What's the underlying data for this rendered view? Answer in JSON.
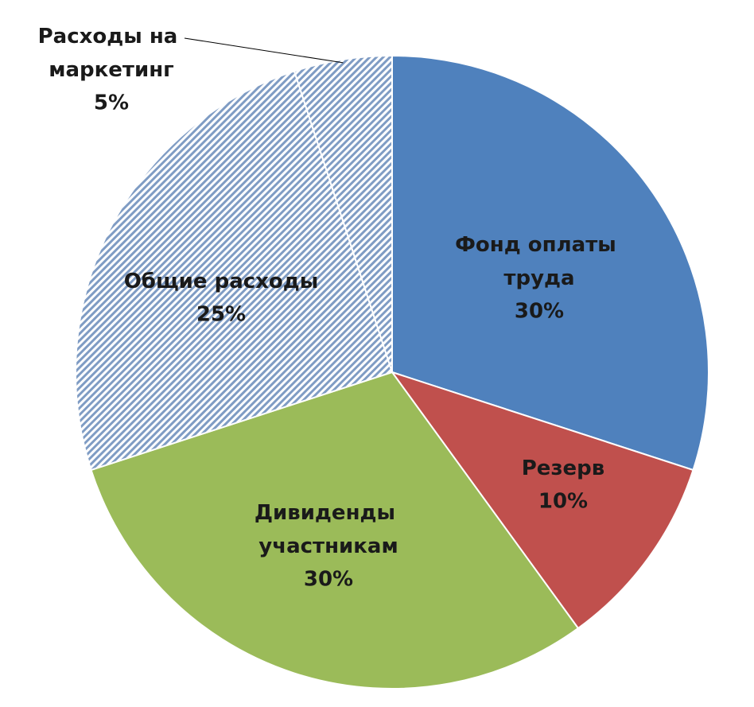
{
  "chart_data": {
    "type": "pie",
    "categories": [
      "Фонд оплаты труда",
      "Резерв",
      "Дивиденды участникам",
      "Общие расходы",
      "Расходы на маркетинг"
    ],
    "values": [
      30,
      10,
      30,
      25,
      5
    ],
    "value_labels": [
      "30%",
      "10%",
      "30%",
      "25%",
      "5%"
    ],
    "colors": [
      "#4f81bd",
      "#c0504d",
      "#9bbb59",
      "#7f9cc4",
      "#7f9cc4"
    ],
    "hatched": [
      false,
      false,
      false,
      true,
      true
    ]
  }
}
